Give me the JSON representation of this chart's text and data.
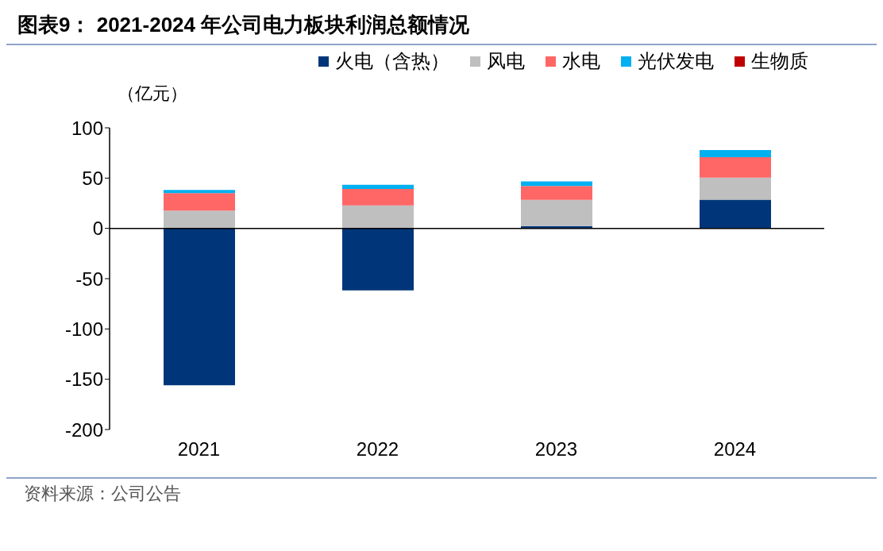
{
  "chart_data": {
    "type": "bar",
    "title": "图表9：  2021-2024 年公司电力板块利润总额情况",
    "ylabel": "（亿元）",
    "annotations": [
      "资料来源：公司公告"
    ],
    "categories": [
      "2021",
      "2022",
      "2023",
      "2024"
    ],
    "stacked": true,
    "series": [
      {
        "name": "火电（含热）",
        "color": "#003679",
        "values": [
          -156,
          -61.7,
          2.3,
          28.6
        ]
      },
      {
        "name": "风电",
        "color": "#bfbfbf",
        "values": [
          17.7,
          22.9,
          26.1,
          21.8
        ]
      },
      {
        "name": "水电",
        "color": "#ff6666",
        "values": [
          17.3,
          16.3,
          13.7,
          20.3
        ]
      },
      {
        "name": "光伏发电",
        "color": "#00b0f0",
        "values": [
          3.3,
          4.1,
          4.7,
          7.1
        ]
      },
      {
        "name": "生物质",
        "color": "#c00000",
        "values": [
          0,
          0,
          0,
          0
        ]
      }
    ],
    "ylim": [
      -200,
      100
    ],
    "yticks": [
      -200,
      -150,
      -100,
      -50,
      0,
      50,
      100
    ],
    "legend": "top right"
  }
}
